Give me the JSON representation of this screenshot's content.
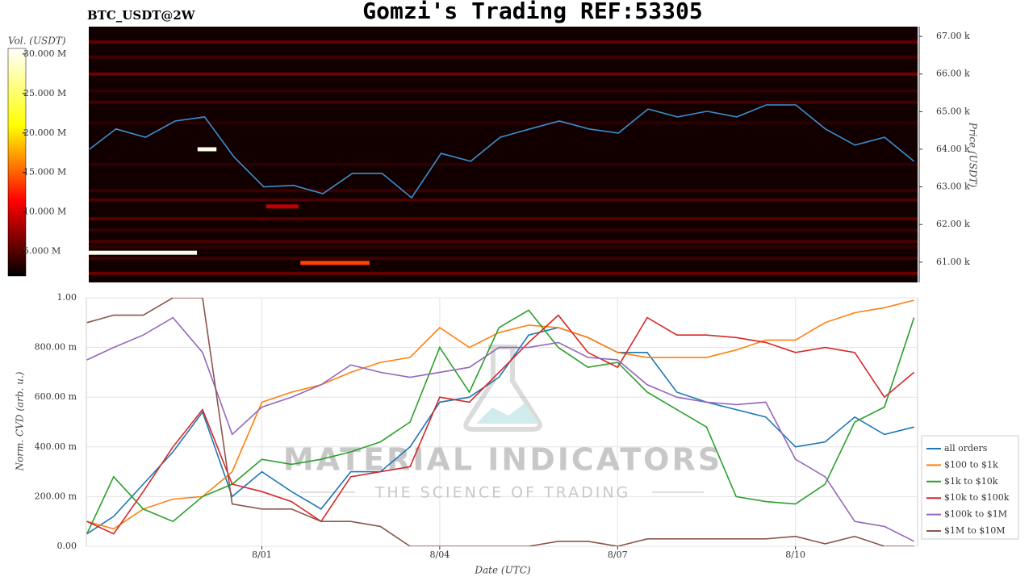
{
  "chart_data": [
    {
      "type": "heatmap",
      "title": "Gomzi's Trading REF:53305",
      "subtitle": "BTC_USDT@2W",
      "ylabel": "Price (USDT)",
      "colorbar_label": "Vol. (USDT)",
      "xlim": [
        -1.96,
        12.06
      ],
      "ylim": [
        60460,
        67260
      ],
      "yticks": [
        {
          "value": 61000,
          "label": "61.00 k"
        },
        {
          "value": 62000,
          "label": "62.00 k"
        },
        {
          "value": 63000,
          "label": "63.00 k"
        },
        {
          "value": 64000,
          "label": "64.00 k"
        },
        {
          "value": 65000,
          "label": "65.00 k"
        },
        {
          "value": 66000,
          "label": "66.00 k"
        },
        {
          "value": 67000,
          "label": "67.00 k"
        }
      ],
      "clim": [
        1900000,
        30700000
      ],
      "cticks": [
        {
          "value": 5000000,
          "label": "5.000 M"
        },
        {
          "value": 10000000,
          "label": "10.000 M"
        },
        {
          "value": 15000000,
          "label": "15.000 M"
        },
        {
          "value": 20000000,
          "label": "20.000 M"
        },
        {
          "value": 25000000,
          "label": "25.000 M"
        },
        {
          "value": 30000000,
          "label": "30.000 M"
        }
      ],
      "x": [
        -1.95,
        -1.5,
        -1,
        -0.5,
        0,
        0.5,
        1,
        1.5,
        2,
        2.5,
        3,
        3.5,
        4,
        4.5,
        5,
        5.5,
        6,
        6.5,
        7,
        7.5,
        8,
        8.5,
        9,
        9.5,
        10,
        10.5,
        11,
        11.5,
        12
      ],
      "values": [
        64000,
        64540,
        64320,
        64750,
        64860,
        63790,
        63000,
        63040,
        62820,
        63360,
        63360,
        62710,
        63890,
        63680,
        64320,
        64540,
        64750,
        64540,
        64430,
        65070,
        64860,
        65010,
        64860,
        65180,
        65180,
        64540,
        64110,
        64320,
        63680
      ],
      "color": "#3a8fd0",
      "levels": {
        "prices": [
          66850,
          66450,
          66000,
          65550,
          65250,
          64700,
          63600,
          62900,
          62650,
          62150,
          61850,
          61550,
          61400,
          61100,
          60700
        ],
        "volumes": [
          5500000,
          4200000,
          6000000,
          3800000,
          4500000,
          3600000,
          3500000,
          4000000,
          4800000,
          5200000,
          3900000,
          4600000,
          3700000,
          4300000,
          5800000
        ]
      },
      "walls": [
        {
          "price": 61250,
          "start": -1.96,
          "end": -0.13,
          "volume": 30000000
        },
        {
          "price": 64000,
          "start": -0.12,
          "end": 0.2,
          "volume": 30000000
        },
        {
          "price": 60980,
          "start": 1.62,
          "end": 2.79,
          "volume": 14000000
        },
        {
          "price": 62480,
          "start": 1.04,
          "end": 1.59,
          "volume": 9000000
        }
      ]
    },
    {
      "type": "line",
      "xlabel": "Date (UTC)",
      "ylabel": "Norm. CVD (arb. u.)",
      "xlim": [
        -1.96,
        12.06
      ],
      "xticks": [
        {
          "value": 1,
          "label": "8/01"
        },
        {
          "value": 4,
          "label": "8/04"
        },
        {
          "value": 7,
          "label": "8/07"
        },
        {
          "value": 10,
          "label": "8/10"
        }
      ],
      "ylim": [
        0,
        1
      ],
      "yticks": [
        {
          "value": 0,
          "label": "0.00"
        },
        {
          "value": 0.2,
          "label": "200.00 m"
        },
        {
          "value": 0.4,
          "label": "400.00 m"
        },
        {
          "value": 0.6,
          "label": "600.00 m"
        },
        {
          "value": 0.8,
          "label": "800.00 m"
        },
        {
          "value": 1,
          "label": "1.00"
        }
      ],
      "grid": true,
      "legend": "lower right",
      "watermark": [
        "MATERIAL INDICATORS",
        "THE SCIENCE OF TRADING"
      ],
      "x": [
        -1.95,
        -1.5,
        -1,
        -0.5,
        0,
        0.5,
        1,
        1.5,
        2,
        2.5,
        3,
        3.5,
        4,
        4.5,
        5,
        5.5,
        6,
        6.5,
        7,
        7.5,
        8,
        8.5,
        9,
        9.5,
        10,
        10.5,
        11,
        11.5,
        12
      ],
      "series": [
        {
          "name": "all orders",
          "color": "#1f77b4",
          "values": [
            0.05,
            0.12,
            0.25,
            0.38,
            0.54,
            0.2,
            0.3,
            0.22,
            0.15,
            0.3,
            0.3,
            0.4,
            0.58,
            0.6,
            0.68,
            0.85,
            0.88,
            0.84,
            0.78,
            0.78,
            0.62,
            0.58,
            0.55,
            0.52,
            0.4,
            0.42,
            0.52,
            0.45,
            0.48
          ]
        },
        {
          "name": "$100 to $1k",
          "color": "#ff7f0e",
          "values": [
            0.1,
            0.07,
            0.15,
            0.19,
            0.2,
            0.3,
            0.58,
            0.62,
            0.65,
            0.7,
            0.74,
            0.76,
            0.88,
            0.8,
            0.86,
            0.89,
            0.88,
            0.84,
            0.78,
            0.76,
            0.76,
            0.76,
            0.79,
            0.83,
            0.83,
            0.9,
            0.94,
            0.96,
            0.99
          ]
        },
        {
          "name": "$1k to $10k",
          "color": "#2ca02c",
          "values": [
            0.05,
            0.28,
            0.15,
            0.1,
            0.2,
            0.25,
            0.35,
            0.33,
            0.35,
            0.38,
            0.42,
            0.5,
            0.8,
            0.62,
            0.88,
            0.95,
            0.8,
            0.72,
            0.74,
            0.62,
            0.55,
            0.48,
            0.2,
            0.18,
            0.17,
            0.25,
            0.5,
            0.56,
            0.92
          ]
        },
        {
          "name": "$10k to $100k",
          "color": "#d62728",
          "values": [
            0.1,
            0.05,
            0.22,
            0.4,
            0.55,
            0.25,
            0.22,
            0.18,
            0.1,
            0.28,
            0.3,
            0.32,
            0.6,
            0.58,
            0.7,
            0.82,
            0.93,
            0.78,
            0.72,
            0.92,
            0.85,
            0.85,
            0.84,
            0.82,
            0.78,
            0.8,
            0.78,
            0.6,
            0.7
          ]
        },
        {
          "name": "$100k to $1M",
          "color": "#9467bd",
          "values": [
            0.75,
            0.8,
            0.85,
            0.92,
            0.78,
            0.45,
            0.56,
            0.6,
            0.65,
            0.73,
            0.7,
            0.68,
            0.7,
            0.72,
            0.8,
            0.8,
            0.82,
            0.76,
            0.75,
            0.65,
            0.6,
            0.58,
            0.57,
            0.58,
            0.35,
            0.28,
            0.1,
            0.08,
            0.02
          ]
        },
        {
          "name": "$1M to $10M",
          "color": "#8c564b",
          "values": [
            0.9,
            0.93,
            0.93,
            1.0,
            1.0,
            0.17,
            0.15,
            0.15,
            0.1,
            0.1,
            0.08,
            0.0,
            0.0,
            0.0,
            0.0,
            0.0,
            0.02,
            0.02,
            0.0,
            0.03,
            0.03,
            0.03,
            0.03,
            0.03,
            0.04,
            0.01,
            0.04,
            0.0,
            0.0
          ]
        }
      ]
    }
  ]
}
